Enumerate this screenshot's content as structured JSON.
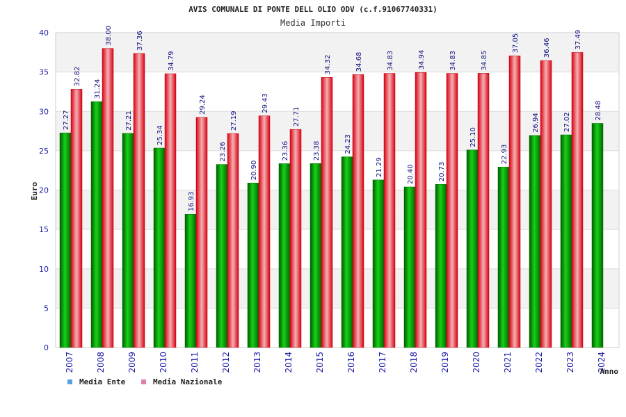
{
  "chart_data": {
    "type": "bar",
    "title": "AVIS COMUNALE DI PONTE DELL OLIO ODV (c.f.91067740331)",
    "subtitle": "Media Importi",
    "xlabel": "Anno",
    "ylabel": "Euro",
    "ylim": [
      0,
      40
    ],
    "yticks": [
      0,
      5,
      10,
      15,
      20,
      25,
      30,
      35,
      40
    ],
    "grid": true,
    "legend_position": "bottom-left",
    "categories": [
      "2007",
      "2008",
      "2009",
      "2010",
      "2011",
      "2012",
      "2013",
      "2014",
      "2015",
      "2016",
      "2017",
      "2018",
      "2019",
      "2020",
      "2021",
      "2022",
      "2023",
      "2024"
    ],
    "series": [
      {
        "name": "Media Ente",
        "color": "#00a000",
        "legend_color": "#5a9ee8",
        "values": [
          27.27,
          31.24,
          27.21,
          25.34,
          16.93,
          23.26,
          20.9,
          23.36,
          23.38,
          24.23,
          21.29,
          20.4,
          20.73,
          25.1,
          22.93,
          26.94,
          27.02,
          28.48
        ],
        "labels": [
          "27.27",
          "31.24",
          "27.21",
          "25.34",
          "16.93",
          "23.26",
          "20.90",
          "23.36",
          "23.38",
          "24.23",
          "21.29",
          "20.40",
          "20.73",
          "25.10",
          "22.93",
          "26.94",
          "27.02",
          "28.48"
        ]
      },
      {
        "name": "Media Nazionale",
        "color": "#e01020",
        "legend_color": "#e080b0",
        "values": [
          32.82,
          38.0,
          37.36,
          34.79,
          29.24,
          27.19,
          29.43,
          27.71,
          34.32,
          34.68,
          34.83,
          34.94,
          34.83,
          34.85,
          37.05,
          36.46,
          37.49,
          null
        ],
        "labels": [
          "32.82",
          "38.00",
          "37.36",
          "34.79",
          "29.24",
          "27.19",
          "29.43",
          "27.71",
          "34.32",
          "34.68",
          "34.83",
          "34.94",
          "34.83",
          "34.85",
          "37.05",
          "36.46",
          "37.49",
          ""
        ]
      }
    ]
  }
}
